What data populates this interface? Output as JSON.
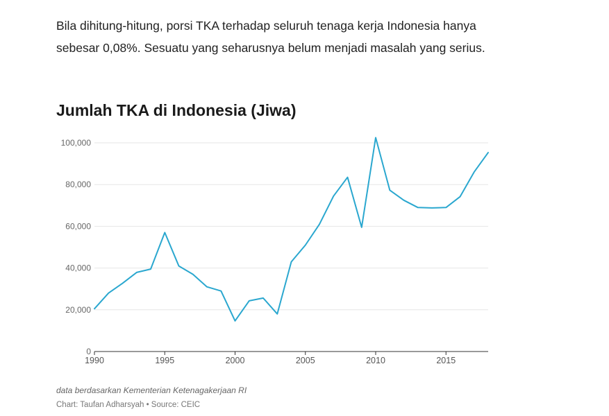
{
  "article": {
    "paragraph": "Bila dihitung-hitung, porsi TKA terhadap seluruh tenaga kerja Indonesia hanya sebesar 0,08%. Sesuatu yang seharusnya belum menjadi masalah yang serius."
  },
  "chart_data": {
    "type": "line",
    "title": "Jumlah TKA di Indonesia (Jiwa)",
    "xlabel": "",
    "ylabel": "",
    "x": [
      1990,
      1991,
      1992,
      1993,
      1994,
      1995,
      1996,
      1997,
      1998,
      1999,
      2000,
      2001,
      2002,
      2003,
      2004,
      2005,
      2006,
      2007,
      2008,
      2009,
      2010,
      2011,
      2012,
      2013,
      2014,
      2015,
      2016,
      2017,
      2018
    ],
    "series": [
      {
        "values": [
          20500,
          28000,
          32700,
          37900,
          39500,
          57000,
          41000,
          37000,
          31000,
          29000,
          14700,
          24300,
          25600,
          18000,
          43000,
          51000,
          61000,
          74500,
          83500,
          59500,
          102500,
          77300,
          72500,
          69000,
          68800,
          69000,
          74200,
          86000,
          95300
        ],
        "color": "#2aa7cf"
      }
    ],
    "xlim": [
      1990,
      2018
    ],
    "ylim": [
      0,
      100000
    ],
    "y_ticks": [
      "0",
      "20,000",
      "40,000",
      "60,000",
      "80,000",
      "100,000"
    ],
    "y_tick_values": [
      0,
      20000,
      40000,
      60000,
      80000,
      100000
    ],
    "x_ticks": [
      "1990",
      "1995",
      "2000",
      "2005",
      "2010",
      "2015"
    ],
    "x_tick_values": [
      1990,
      1995,
      2000,
      2005,
      2010,
      2015
    ],
    "grid": true,
    "gridline_color": "#e6e6e6",
    "note": "data berdasarkan Kementerian Ketenagakerjaan RI",
    "credit": "Chart: Taufan Adharsyah • Source: CEIC"
  }
}
